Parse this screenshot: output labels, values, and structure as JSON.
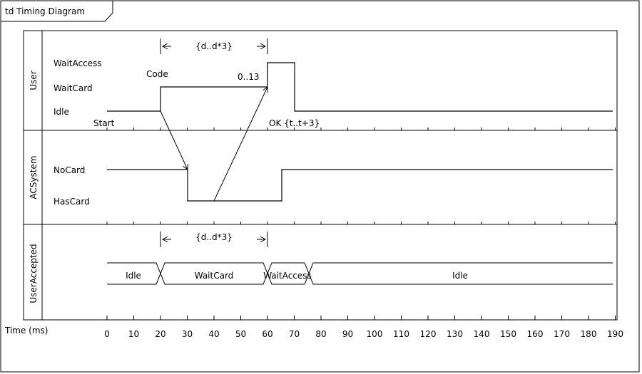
{
  "frame": {
    "title": "td Timing Diagram"
  },
  "lifelines": [
    {
      "name": "User",
      "states": [
        "WaitAccess",
        "WaitCard",
        "Idle"
      ]
    },
    {
      "name": "ACSystem",
      "states": [
        "NoCard",
        "HasCard"
      ]
    },
    {
      "name": "UserAccepted",
      "segments": [
        "Idle",
        "WaitCard",
        "WaitAccess",
        "Idle"
      ]
    }
  ],
  "messages": {
    "code": "Code",
    "ok": "OK {t..t+3}",
    "start": "Start",
    "range": "0..13"
  },
  "constraints": {
    "duration_top": "{d..d*3}",
    "duration_bottom": "{d..d*3}"
  },
  "axis": {
    "label": "Time (ms)",
    "ticks": [
      "0",
      "10",
      "20",
      "30",
      "40",
      "50",
      "60",
      "70",
      "80",
      "90",
      "100",
      "110",
      "120",
      "130",
      "140",
      "150",
      "160",
      "170",
      "180",
      "190"
    ]
  },
  "chart_data": {
    "type": "timing",
    "x_unit": "ms",
    "xlim": [
      0,
      190
    ],
    "user_state_changes": [
      {
        "t": 0,
        "state": "Idle"
      },
      {
        "t": 20,
        "state": "WaitCard"
      },
      {
        "t": 60,
        "state": "WaitAccess"
      },
      {
        "t": 70,
        "state": "Idle"
      }
    ],
    "acsystem_state_changes": [
      {
        "t": 0,
        "state": "NoCard"
      },
      {
        "t": 30,
        "state": "HasCard"
      },
      {
        "t": 65,
        "state": "NoCard"
      }
    ],
    "useraccepted_segments": [
      {
        "from": 0,
        "to": 20,
        "state": "Idle"
      },
      {
        "from": 20,
        "to": 60,
        "state": "WaitCard"
      },
      {
        "from": 60,
        "to": 75,
        "state": "WaitAccess"
      },
      {
        "from": 75,
        "to": 190,
        "state": "Idle"
      }
    ],
    "duration_constraint": {
      "from": 20,
      "to": 60,
      "label": "{d..d*3}"
    }
  }
}
